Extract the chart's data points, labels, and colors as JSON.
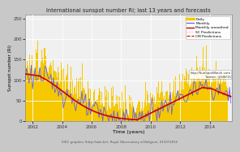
{
  "title": "International sunspot number Ri; last 13 years and forecasts",
  "xlabel": "Time (years)",
  "ylabel": "Sunspot number (Ri)",
  "xlim": [
    2001.5,
    2015.5
  ],
  "ylim": [
    0,
    260
  ],
  "yticks": [
    0,
    50,
    100,
    150,
    200,
    250
  ],
  "xtick_years": [
    2002,
    2004,
    2006,
    2008,
    2010,
    2012,
    2014
  ],
  "plot_bg": "#f0f0f0",
  "fig_bg": "#c8c8c8",
  "grid_color": "#ffffff",
  "footer": "SIDC graphics (http://sidc.be), Royal Observatory of Belgium, 01/07/2015",
  "watermark_line1": "http://SunSpotWatch.com",
  "watermark_line2": "Twitter: @SW/15",
  "daily_color": "#f5c800",
  "monthly_color": "#5555ff",
  "smooth_color": "#cc0000",
  "sc_pred_color": "#ff9999",
  "cm_pred_color": "#cc0000",
  "cycle23_start": 2001.5,
  "cycle23_peak_year": 2001.9,
  "cycle23_peak_val": 115,
  "cycle24_peak_year": 2013.5,
  "cycle24_peak_val": 82,
  "min_year": 2009.0,
  "min_val": 2,
  "pred_start": 2014.5,
  "pred_end": 2015.6
}
